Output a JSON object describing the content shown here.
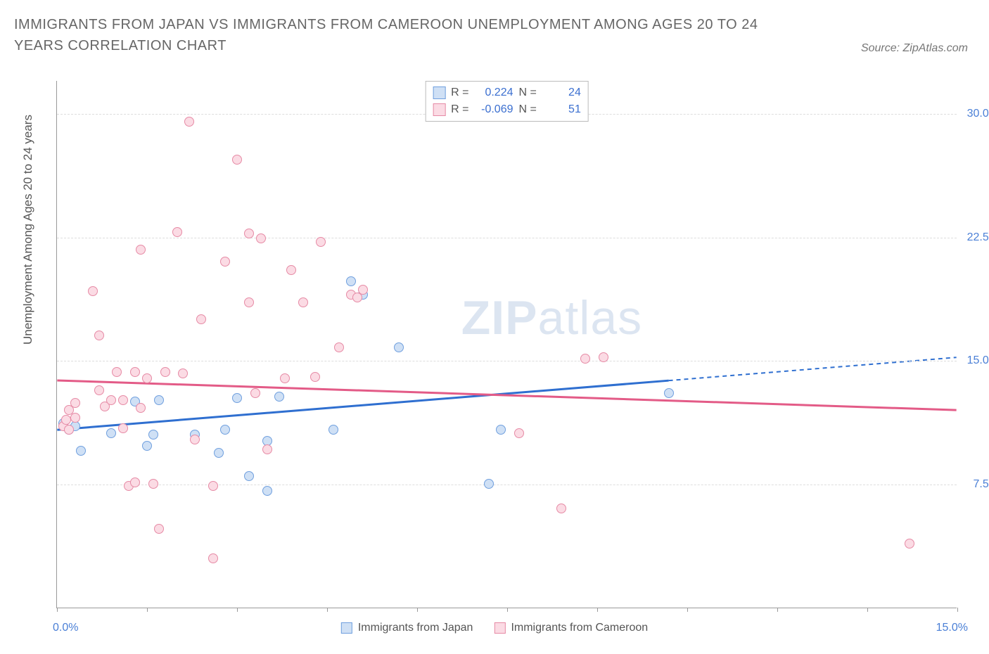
{
  "title": "IMMIGRANTS FROM JAPAN VS IMMIGRANTS FROM CAMEROON UNEMPLOYMENT AMONG AGES 20 TO 24 YEARS CORRELATION CHART",
  "source": "Source: ZipAtlas.com",
  "ylabel": "Unemployment Among Ages 20 to 24 years",
  "watermark_bold": "ZIP",
  "watermark_rest": "atlas",
  "chart": {
    "type": "scatter",
    "xlim": [
      0,
      15
    ],
    "ylim": [
      0,
      32
    ],
    "x_ticks_pct": [
      0,
      10,
      20,
      30,
      40,
      50,
      60,
      70,
      80,
      90,
      100
    ],
    "y_gridlines": [
      7.5,
      15.0,
      22.5,
      30.0
    ],
    "y_tick_labels": [
      "7.5%",
      "15.0%",
      "22.5%",
      "30.0%"
    ],
    "x_label_zero": "0.0%",
    "x_label_max": "15.0%",
    "background_color": "#ffffff",
    "grid_color": "#dddddd",
    "axis_color": "#999999",
    "series": [
      {
        "name": "Immigrants from Japan",
        "color_fill": "#cfe0f5",
        "color_stroke": "#6f9fde",
        "line_color": "#2f6fd0",
        "R": "0.224",
        "N": "24",
        "trend": {
          "x1": 0,
          "y1": 10.8,
          "x2": 15,
          "y2": 15.2,
          "solid_until_x": 10.2
        },
        "points": [
          [
            0.1,
            11.2
          ],
          [
            0.2,
            10.8
          ],
          [
            0.3,
            11.0
          ],
          [
            0.4,
            9.5
          ],
          [
            0.9,
            10.6
          ],
          [
            1.3,
            12.5
          ],
          [
            1.5,
            9.8
          ],
          [
            1.6,
            10.5
          ],
          [
            1.7,
            12.6
          ],
          [
            2.3,
            10.5
          ],
          [
            2.7,
            9.4
          ],
          [
            2.8,
            10.8
          ],
          [
            3.0,
            12.7
          ],
          [
            3.2,
            8.0
          ],
          [
            3.5,
            10.1
          ],
          [
            3.7,
            12.8
          ],
          [
            3.5,
            7.1
          ],
          [
            4.6,
            10.8
          ],
          [
            4.9,
            19.8
          ],
          [
            5.1,
            19.0
          ],
          [
            5.7,
            15.8
          ],
          [
            7.2,
            7.5
          ],
          [
            7.4,
            10.8
          ],
          [
            10.2,
            13.0
          ]
        ]
      },
      {
        "name": "Immigrants from Cameroon",
        "color_fill": "#fbdbe4",
        "color_stroke": "#e68aa5",
        "line_color": "#e35b87",
        "R": "-0.069",
        "N": "51",
        "trend": {
          "x1": 0,
          "y1": 13.8,
          "x2": 15,
          "y2": 12.0,
          "solid_until_x": 15
        },
        "points": [
          [
            0.1,
            11.0
          ],
          [
            0.15,
            11.4
          ],
          [
            0.2,
            10.8
          ],
          [
            0.2,
            12.0
          ],
          [
            0.3,
            11.5
          ],
          [
            0.3,
            12.4
          ],
          [
            0.6,
            19.2
          ],
          [
            0.7,
            13.2
          ],
          [
            0.7,
            16.5
          ],
          [
            0.8,
            12.2
          ],
          [
            0.9,
            12.6
          ],
          [
            1.0,
            14.3
          ],
          [
            1.1,
            10.9
          ],
          [
            1.1,
            12.6
          ],
          [
            1.2,
            7.4
          ],
          [
            1.3,
            7.6
          ],
          [
            1.3,
            14.3
          ],
          [
            1.4,
            21.7
          ],
          [
            1.4,
            12.1
          ],
          [
            1.5,
            13.9
          ],
          [
            1.6,
            7.5
          ],
          [
            1.7,
            4.8
          ],
          [
            1.8,
            14.3
          ],
          [
            2.0,
            22.8
          ],
          [
            2.1,
            14.2
          ],
          [
            2.2,
            29.5
          ],
          [
            2.3,
            10.2
          ],
          [
            2.4,
            17.5
          ],
          [
            2.6,
            7.4
          ],
          [
            2.6,
            3.0
          ],
          [
            2.8,
            21.0
          ],
          [
            3.0,
            27.2
          ],
          [
            3.2,
            22.7
          ],
          [
            3.2,
            18.5
          ],
          [
            3.3,
            13.0
          ],
          [
            3.4,
            22.4
          ],
          [
            3.5,
            9.6
          ],
          [
            3.8,
            13.9
          ],
          [
            3.9,
            20.5
          ],
          [
            4.1,
            18.5
          ],
          [
            4.3,
            14.0
          ],
          [
            4.4,
            22.2
          ],
          [
            4.7,
            15.8
          ],
          [
            4.9,
            19.0
          ],
          [
            5.0,
            18.8
          ],
          [
            5.1,
            19.3
          ],
          [
            7.7,
            10.6
          ],
          [
            8.4,
            6.0
          ],
          [
            8.8,
            15.1
          ],
          [
            9.1,
            15.2
          ],
          [
            14.2,
            3.9
          ]
        ]
      }
    ]
  },
  "legend_bottom": [
    {
      "label": "Immigrants from Japan",
      "fill": "#cfe0f5",
      "stroke": "#6f9fde"
    },
    {
      "label": "Immigrants from Cameroon",
      "fill": "#fbdbe4",
      "stroke": "#e68aa5"
    }
  ],
  "corr_labels": {
    "R": "R =",
    "N": "N ="
  }
}
